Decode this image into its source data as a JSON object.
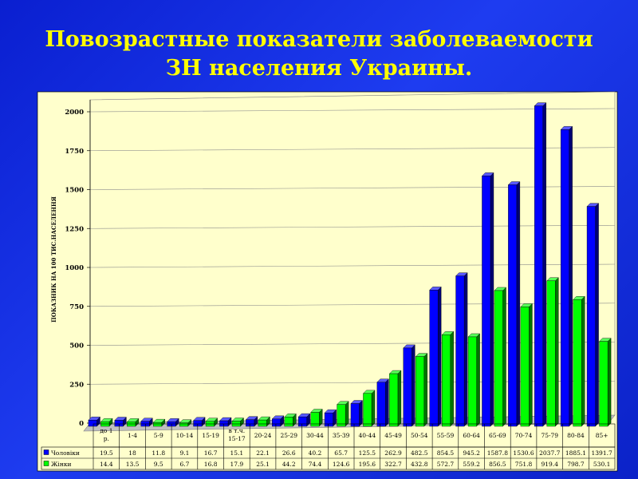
{
  "title": "Повозрастные показатели заболеваемости ЗН населения Украины.",
  "chart_data": {
    "type": "bar",
    "title": "Повозрастные показатели заболеваемости ЗН населения Украины.",
    "xlabel": "",
    "ylabel": "ПОКАЗНИК НА 100 ТИС.НАСЕЛЕННЯ",
    "ylim": [
      0,
      2000
    ],
    "yticks": [
      "0",
      "250",
      "500",
      "750",
      "1000",
      "1250",
      "1500",
      "1750",
      "2000"
    ],
    "grid": true,
    "legend": "data-table-left",
    "categories": [
      "до 1 р.",
      "1-4",
      "5-9",
      "10-14",
      "15-19",
      "в т.ч. 15-17",
      "20-24",
      "25-29",
      "30-44",
      "35-39",
      "40-44",
      "45-49",
      "50-54",
      "55-59",
      "60-64",
      "65-69",
      "70-74",
      "75-79",
      "80-84",
      "85+"
    ],
    "series": [
      {
        "name": "Чоловіки",
        "color": "#0000ff",
        "values": [
          19.5,
          18,
          11.8,
          9.1,
          16.7,
          15.1,
          22.1,
          26.6,
          40.2,
          65.7,
          125.5,
          262.9,
          482.5,
          854.5,
          945.2,
          1587.8,
          1530.6,
          2037.7,
          1885.1,
          1391.7
        ],
        "labels": [
          "19.5",
          "18",
          "11.8",
          "9.1",
          "16.7",
          "15.1",
          "22.1",
          "26.6",
          "40.2",
          "65.7",
          "125.5",
          "262.9",
          "482.5",
          "854.5",
          "945.2",
          "1587.8",
          "1530.6",
          "2037.7",
          "1885.1",
          "1391.7"
        ]
      },
      {
        "name": "Жінки",
        "color": "#00ff00",
        "values": [
          14.4,
          13.5,
          9.5,
          6.7,
          16.8,
          17.9,
          25.1,
          44.2,
          74.4,
          124.6,
          195.6,
          322.7,
          432.8,
          572.7,
          559.2,
          856.5,
          751.8,
          919.4,
          798.7,
          530.1
        ],
        "labels": [
          "14.4",
          "13.5",
          "9.5",
          "6.7",
          "16.8",
          "17.9",
          "25.1",
          "44.2",
          "74.4",
          "124.6",
          "195.6",
          "322.7",
          "432.8",
          "572.7",
          "559.2",
          "856.5",
          "751.8",
          "919.4",
          "798.7",
          "530.1"
        ]
      }
    ]
  }
}
